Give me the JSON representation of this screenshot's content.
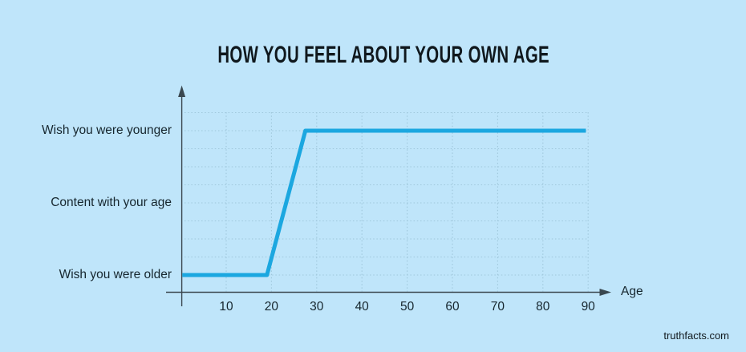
{
  "page": {
    "watermark": "truthfacts.com"
  },
  "chart_data": {
    "type": "line",
    "title": "HOW YOU FEEL ABOUT YOUR OWN AGE",
    "xlabel": "Age",
    "x_ticks": [
      "10",
      "20",
      "30",
      "40",
      "50",
      "60",
      "70",
      "80",
      "90"
    ],
    "xlim": [
      0,
      95
    ],
    "y_levels": [
      "Wish you were older",
      "Content with your age",
      "Wish you were younger"
    ],
    "series": [
      {
        "name": "feeling-about-age",
        "points": [
          [
            0.3,
            0
          ],
          [
            19,
            0
          ],
          [
            27.5,
            2
          ],
          [
            89.5,
            2
          ]
        ]
      }
    ],
    "grid": "dotted",
    "legend": "none",
    "colors": {
      "background": "#bfe5fa",
      "line": "#1ba7e0",
      "axis": "#3a474f",
      "grid": "#9fc7db",
      "text": "#16262e"
    }
  }
}
